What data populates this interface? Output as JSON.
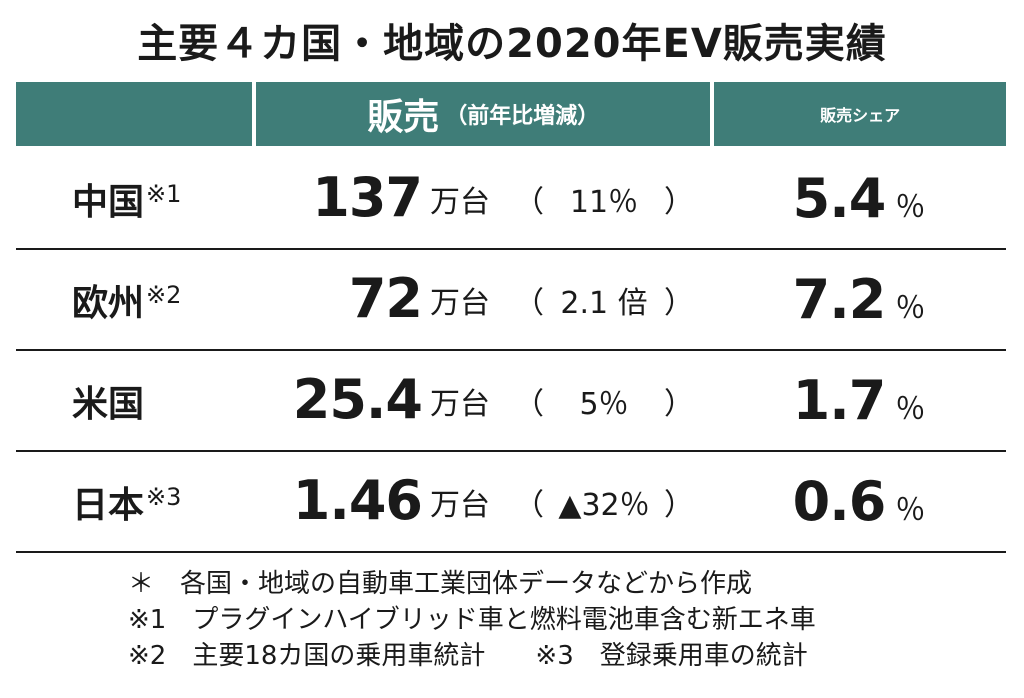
{
  "title": "主要４カ国・地域の2020年EV販売実績",
  "header": {
    "sales_label": "販売",
    "sales_sub": "（前年比増減）",
    "share_label": "販売シェア"
  },
  "chart_data": {
    "type": "table",
    "columns": [
      "",
      "販売（前年比増減）",
      "販売シェア"
    ],
    "rows": [
      {
        "region": "中国",
        "note": "※1",
        "sales": "137",
        "sales_unit": "万台",
        "change": "11％",
        "share": "5.4",
        "share_unit": "％"
      },
      {
        "region": "欧州",
        "note": "※2",
        "sales": "72",
        "sales_unit": "万台",
        "change": "2.1 倍",
        "share": "7.2",
        "share_unit": "％"
      },
      {
        "region": "米国",
        "note": "",
        "sales": "25.4",
        "sales_unit": "万台",
        "change": "5％",
        "share": "1.7",
        "share_unit": "％"
      },
      {
        "region": "日本",
        "note": "※3",
        "sales": "1.46",
        "sales_unit": "万台",
        "change": "▲32％",
        "share": "0.6",
        "share_unit": "％"
      }
    ]
  },
  "footnotes": {
    "line1": "＊　各国・地域の自動車工業団体データなどから作成",
    "line2": "※1　プラグインハイブリッド車と燃料電池車含む新エネ車",
    "line3a": "※2　主要18カ国の乗用車統計",
    "line3b": "※3　登録乗用車の統計"
  },
  "paren_open": "（",
  "paren_close": "）"
}
